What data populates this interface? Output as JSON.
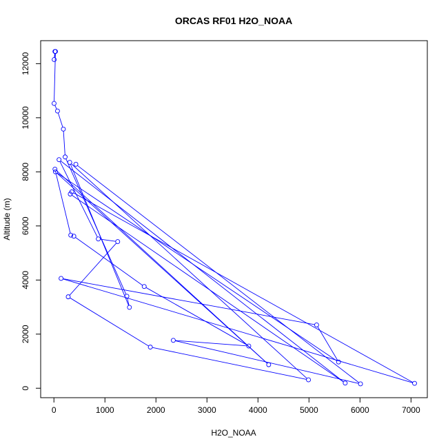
{
  "chart_data": {
    "type": "line",
    "title": "ORCAS RF01 H2O_NOAA",
    "xlabel": "H2O_NOAA",
    "ylabel": "Altitude (m)",
    "xlim": [
      -260,
      7320
    ],
    "ylim": [
      -350,
      12850
    ],
    "x_ticks": [
      0,
      1000,
      2000,
      3000,
      4000,
      5000,
      6000,
      7000
    ],
    "y_ticks": [
      0,
      2000,
      4000,
      6000,
      8000,
      10000,
      12000
    ],
    "grid": false,
    "line_color": "#0000ff",
    "marker": "open-circle",
    "points": [
      {
        "x": 20,
        "y": 12450
      },
      {
        "x": 5,
        "y": 12150
      },
      {
        "x": 30,
        "y": 12450
      },
      {
        "x": 3,
        "y": 10530
      },
      {
        "x": 70,
        "y": 10250
      },
      {
        "x": 185,
        "y": 9580
      },
      {
        "x": 220,
        "y": 8550
      },
      {
        "x": 1430,
        "y": 3400
      },
      {
        "x": 1480,
        "y": 2990
      },
      {
        "x": 310,
        "y": 8350
      },
      {
        "x": 4990,
        "y": 310
      },
      {
        "x": 1890,
        "y": 1520
      },
      {
        "x": 280,
        "y": 3380
      },
      {
        "x": 1250,
        "y": 5420
      },
      {
        "x": 870,
        "y": 5520
      },
      {
        "x": 100,
        "y": 8450
      },
      {
        "x": 5710,
        "y": 190
      },
      {
        "x": 320,
        "y": 7180
      },
      {
        "x": 350,
        "y": 7260
      },
      {
        "x": 7070,
        "y": 180
      },
      {
        "x": 140,
        "y": 4060
      },
      {
        "x": 5150,
        "y": 2340
      },
      {
        "x": 5580,
        "y": 970
      },
      {
        "x": 30,
        "y": 8000
      },
      {
        "x": 4210,
        "y": 870
      },
      {
        "x": 20,
        "y": 8100
      },
      {
        "x": 330,
        "y": 5660
      },
      {
        "x": 390,
        "y": 5620
      },
      {
        "x": 1770,
        "y": 3760
      },
      {
        "x": 3820,
        "y": 1560
      },
      {
        "x": 2340,
        "y": 1770
      },
      {
        "x": 6010,
        "y": 160
      },
      {
        "x": 430,
        "y": 8280
      }
    ]
  }
}
